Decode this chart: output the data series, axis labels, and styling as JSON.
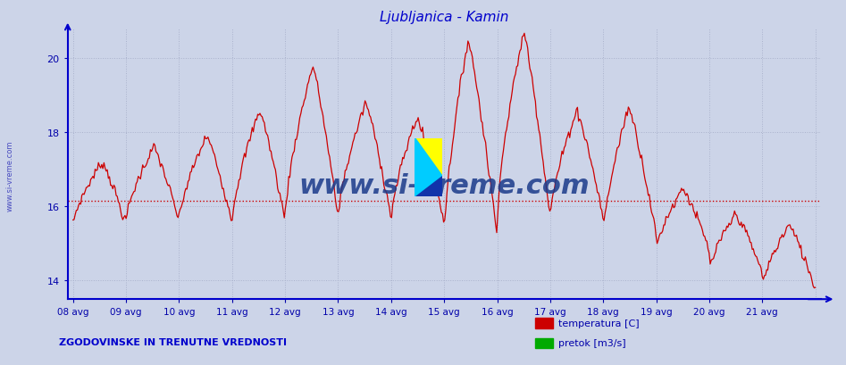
{
  "title": "Ljubljanica - Kamin",
  "title_color": "#0000cc",
  "background_color": "#ccd4e8",
  "plot_bg_color": "#ccd4e8",
  "line_color": "#cc0000",
  "avg_line_color": "#cc0000",
  "avg_line_value": 16.15,
  "ylim": [
    13.5,
    20.8
  ],
  "yticks": [
    14,
    16,
    18,
    20
  ],
  "ylabel_color": "#0000aa",
  "xlabel_color": "#0000aa",
  "grid_color": "#aab2cc",
  "axis_color": "#0000cc",
  "watermark_text": "www.si-vreme.com",
  "bottom_left_text": "ZGODOVINSKE IN TRENUTNE VREDNOSTI",
  "bottom_left_color": "#0000cc",
  "legend_items": [
    {
      "label": "temperatura [C]",
      "color": "#cc0000"
    },
    {
      "label": "pretok [m3/s]",
      "color": "#00aa00"
    }
  ],
  "x_labels": [
    "08 avg",
    "09 avg",
    "10 avg",
    "11 avg",
    "12 avg",
    "13 avg",
    "14 avg",
    "15 avg",
    "16 avg",
    "17 avg",
    "18 avg",
    "19 avg",
    "20 avg",
    "21 avg"
  ],
  "n_points": 672,
  "watermark_color": "#1a3a8a",
  "sidebar_text": "www.si-vreme.com",
  "sidebar_color": "#0000aa",
  "day_peaks": [
    17.2,
    17.6,
    17.9,
    18.6,
    19.8,
    18.8,
    18.4,
    20.5,
    20.7,
    18.6,
    18.7,
    16.5,
    15.8,
    15.5
  ],
  "day_troughs": [
    15.5,
    15.6,
    15.6,
    15.6,
    15.7,
    15.7,
    15.6,
    15.2,
    15.7,
    15.7,
    15.2,
    14.8,
    14.2,
    13.8
  ],
  "day_peak_phase": [
    0.55,
    0.52,
    0.52,
    0.52,
    0.52,
    0.52,
    0.48,
    0.45,
    0.5,
    0.5,
    0.48,
    0.5,
    0.5,
    0.5
  ]
}
